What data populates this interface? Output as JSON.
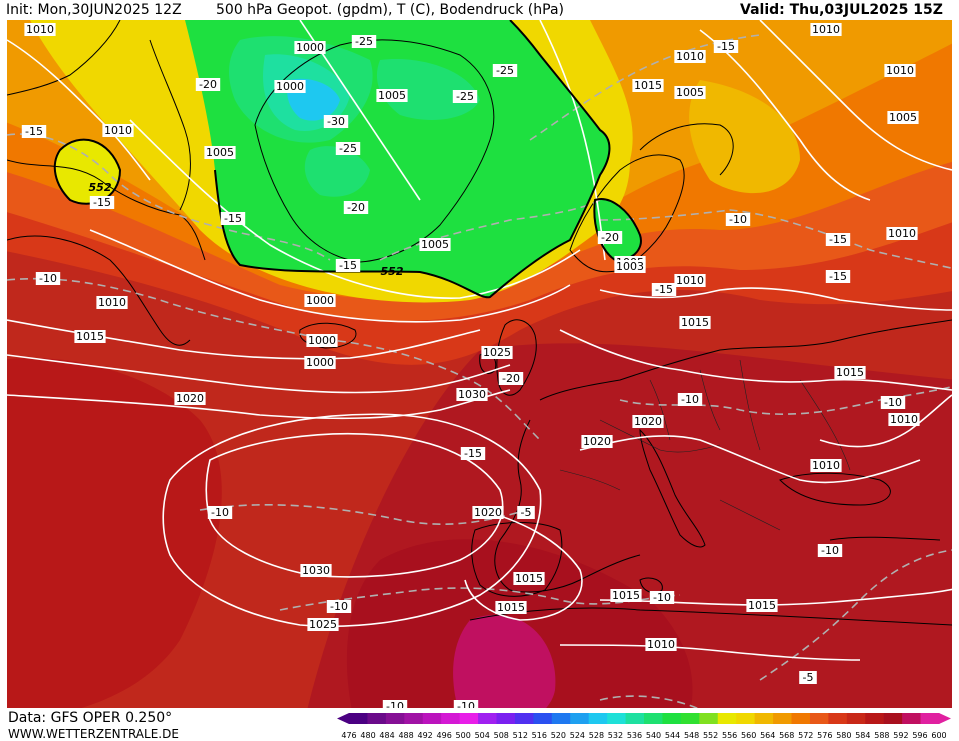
{
  "header": {
    "init_label": "Init: Mon,30JUN2025 12Z",
    "title": "500 hPa Geopot. (gpdm), T (C), Bodendruck (hPa)",
    "valid_label": "Valid: Thu,03JUL2025 15Z"
  },
  "footer": {
    "data_source": "Data: GFS OPER 0.250°",
    "website": "WWW.WETTERZENTRALE.DE"
  },
  "colorbar": {
    "ticks": [
      "476",
      "480",
      "484",
      "488",
      "492",
      "496",
      "500",
      "504",
      "508",
      "512",
      "516",
      "520",
      "524",
      "528",
      "532",
      "536",
      "540",
      "544",
      "548",
      "552",
      "556",
      "560",
      "564",
      "568",
      "572",
      "576",
      "580",
      "584",
      "588",
      "592",
      "596",
      "600"
    ],
    "colors": [
      "#4b0082",
      "#6a0a8a",
      "#850f95",
      "#a012a5",
      "#bb13bd",
      "#d418d4",
      "#e81ee8",
      "#a020f0",
      "#7a20f0",
      "#5030f0",
      "#2a50f0",
      "#1e78f0",
      "#1ea0f0",
      "#1ec8f0",
      "#1ee0d8",
      "#1ee0a0",
      "#1ee070",
      "#1ee040",
      "#30e030",
      "#80e020",
      "#e8e800",
      "#f0d800",
      "#f0b800",
      "#f09a00",
      "#f07800",
      "#e85818",
      "#d83818",
      "#c82818",
      "#b81818",
      "#a8101e",
      "#c01060",
      "#e020a0"
    ]
  },
  "map_labels": {
    "pressure": [
      "1010",
      "1010",
      "1000",
      "1000",
      "1000",
      "1010",
      "1015",
      "1005",
      "1010",
      "1005",
      "1010",
      "1005",
      "1015",
      "1010",
      "1020",
      "1000",
      "1010",
      "1005",
      "1010",
      "1015",
      "1010",
      "1005",
      "1025",
      "1030",
      "1020",
      "1020",
      "1015",
      "1020",
      "1030",
      "1015",
      "1025",
      "1015",
      "1015",
      "1010",
      "1010",
      "1015",
      "1010",
      "1005",
      "1000",
      "1010"
    ],
    "temperature": [
      "-25",
      "-20",
      "-15",
      "-25",
      "-25",
      "-30",
      "-25",
      "-20",
      "-15",
      "-15",
      "-20",
      "-10",
      "-15",
      "-15",
      "-10",
      "-15",
      "-20",
      "-10",
      "-10",
      "-15",
      "-10",
      "-5",
      "-10",
      "-10",
      "-5",
      "-10",
      "-15",
      "-15",
      "-10",
      "-10"
    ],
    "geopotential": [
      "552",
      "552",
      "1003"
    ]
  }
}
